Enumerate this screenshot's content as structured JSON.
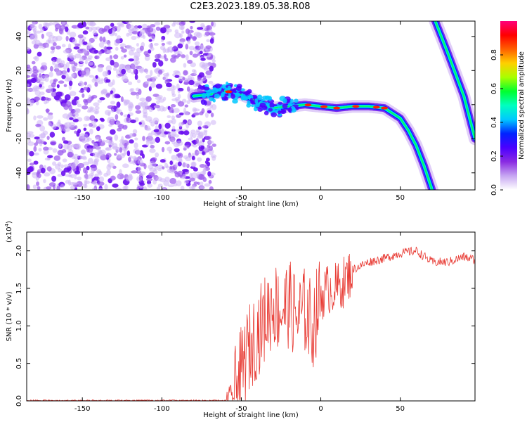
{
  "title": "C2E3.2023.189.05.38.R08",
  "chart_data": [
    {
      "type": "heatmap",
      "xlabel": "Height of straight line (km)",
      "ylabel": "Frequency (Hz)",
      "xlim": [
        -185,
        97
      ],
      "ylim": [
        -50,
        49
      ],
      "xticks": [
        -150,
        -100,
        -50,
        0,
        50
      ],
      "yticks": [
        -40,
        -20,
        0,
        20,
        40
      ],
      "colorbar": {
        "label": "Normalized spectral amplitude",
        "range": [
          0.0,
          1.0
        ],
        "ticks": [
          0.0,
          0.2,
          0.4,
          0.6,
          0.8
        ],
        "tick_labels": [
          "0.0",
          "0.2",
          "0.4",
          "0.6",
          "0.8"
        ],
        "colors": [
          "#ffffff",
          "#c7a6f2",
          "#8a2be2",
          "#4b00ff",
          "#0022ff",
          "#00c8ff",
          "#00ffc0",
          "#00ff30",
          "#a8ff00",
          "#ffd000",
          "#ff6000",
          "#ff0000",
          "#ff007a"
        ]
      },
      "ridge": {
        "x": [
          -80,
          -70,
          -60,
          -50,
          -40,
          -30,
          -20,
          -10,
          0,
          10,
          20,
          30,
          40,
          50,
          55,
          60,
          65,
          70
        ],
        "y": [
          5,
          6,
          8,
          6,
          2,
          -2,
          -1,
          0,
          -1,
          -2,
          -1,
          -1,
          -2,
          -8,
          -15,
          -24,
          -36,
          -50
        ]
      },
      "ridge2": {
        "x": [
          72,
          80,
          90,
          97
        ],
        "y": [
          49,
          30,
          5,
          -20
        ]
      },
      "noise_region": {
        "x": [
          -185,
          -67
        ]
      }
    },
    {
      "type": "line",
      "xlabel": "Height of straight line (km)",
      "ylabel": "SNR (10 * v/v)",
      "scale_label": "(x10",
      "scale_exp": "4",
      "scale_close": ")",
      "xlim": [
        -185,
        97
      ],
      "ylim": [
        0,
        2.25
      ],
      "xticks": [
        -150,
        -100,
        -50,
        0,
        50
      ],
      "yticks": [
        0.0,
        0.5,
        1.0,
        1.5,
        2.0
      ],
      "ytick_labels": [
        "0.0",
        "0.5",
        "1.0",
        "1.5",
        "2.0"
      ],
      "line_color": "#e83a33",
      "envelope": {
        "x": [
          -185,
          -60,
          -55,
          -50,
          -45,
          -40,
          -35,
          -30,
          -25,
          -20,
          -15,
          -10,
          -5,
          0,
          5,
          10,
          15,
          20,
          25,
          30,
          40,
          50,
          60,
          70,
          80,
          90,
          97
        ],
        "y": [
          0.0,
          0.0,
          0.05,
          0.4,
          0.7,
          0.9,
          1.1,
          1.3,
          1.2,
          1.3,
          1.1,
          1.2,
          1.0,
          1.4,
          1.5,
          1.5,
          1.6,
          1.75,
          1.8,
          1.85,
          1.9,
          1.97,
          2.0,
          1.85,
          1.85,
          1.92,
          1.88
        ]
      }
    }
  ]
}
